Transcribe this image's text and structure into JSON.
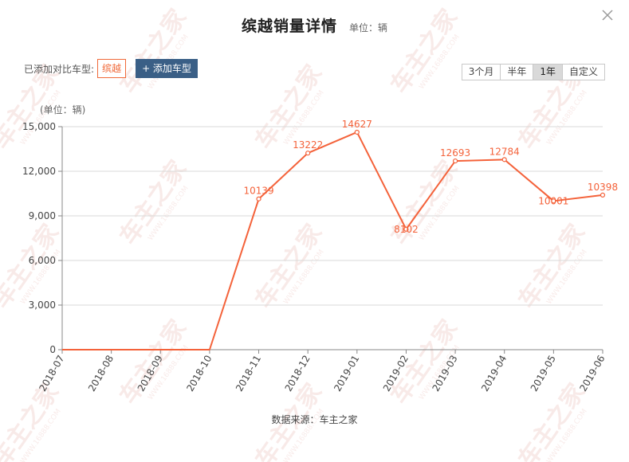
{
  "header": {
    "title": "缤越销量详情",
    "unit": "单位：辆"
  },
  "toolbar": {
    "compare_label": "已添加对比车型:",
    "model_tag": "缤越",
    "add_button": "+ 添加车型"
  },
  "range_tabs": [
    {
      "label": "3个月",
      "active": false
    },
    {
      "label": "半年",
      "active": false
    },
    {
      "label": "1年",
      "active": true
    },
    {
      "label": "自定义",
      "active": false
    }
  ],
  "footer": {
    "source": "数据来源：车主之家"
  },
  "watermark": {
    "text": "车主之家",
    "subtext": "WWW.16888.COM"
  },
  "colors": {
    "series": "#f4623a",
    "grid": "#d9d9d9",
    "axis": "#888888",
    "tag_border": "#f06a3a",
    "button_bg": "#3a5f86"
  },
  "chart_data": {
    "type": "line",
    "ylabel": "(单位：辆)",
    "ylim": [
      0,
      15000
    ],
    "yticks": [
      0,
      3000,
      6000,
      9000,
      12000,
      15000
    ],
    "ytick_labels": [
      "0",
      "3,000",
      "6,000",
      "9,000",
      "12,000",
      "15,000"
    ],
    "categories": [
      "2018-07",
      "2018-08",
      "2018-09",
      "2018-10",
      "2018-11",
      "2018-12",
      "2019-01",
      "2019-02",
      "2019-03",
      "2019-04",
      "2019-05",
      "2019-06"
    ],
    "series": [
      {
        "values": [
          0,
          0,
          0,
          0,
          10139,
          13222,
          14627,
          8102,
          12693,
          12784,
          10001,
          10398
        ],
        "labels": [
          "",
          "",
          "",
          "",
          "10139",
          "13222",
          "14627",
          "8102",
          "12693",
          "12784",
          "10001",
          "10398"
        ]
      }
    ],
    "grid": true,
    "legend": "none"
  }
}
